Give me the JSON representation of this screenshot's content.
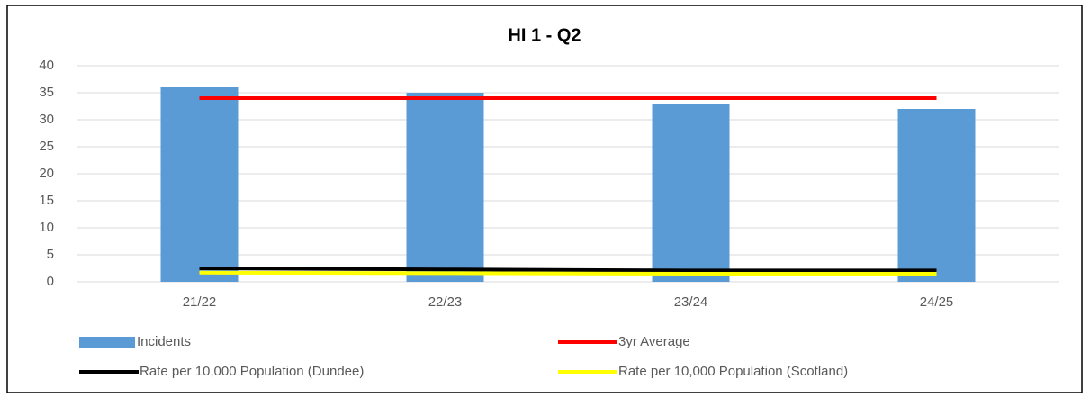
{
  "chart_data": {
    "type": "bar",
    "title": "HI 1 - Q2",
    "categories": [
      "21/22",
      "22/23",
      "23/24",
      "24/25"
    ],
    "series": [
      {
        "name": "Incidents",
        "type": "bar",
        "color": "#5b9bd5",
        "values": [
          36,
          35,
          33,
          32
        ]
      },
      {
        "name": "3yr Average",
        "type": "line",
        "color": "#ff0000",
        "values": [
          34,
          34,
          34,
          34
        ]
      },
      {
        "name": "Rate per 10,000 Population (Dundee)",
        "type": "line",
        "color": "#000000",
        "values": [
          2.5,
          2.3,
          2.1,
          2.1
        ]
      },
      {
        "name": "Rate per 10,000 Population (Scotland)",
        "type": "line",
        "color": "#ffff00",
        "values": [
          1.7,
          1.6,
          1.5,
          1.5
        ]
      }
    ],
    "ylim": [
      0,
      40
    ],
    "yticks": [
      0,
      5,
      10,
      15,
      20,
      25,
      30,
      35,
      40
    ],
    "grid": true
  }
}
